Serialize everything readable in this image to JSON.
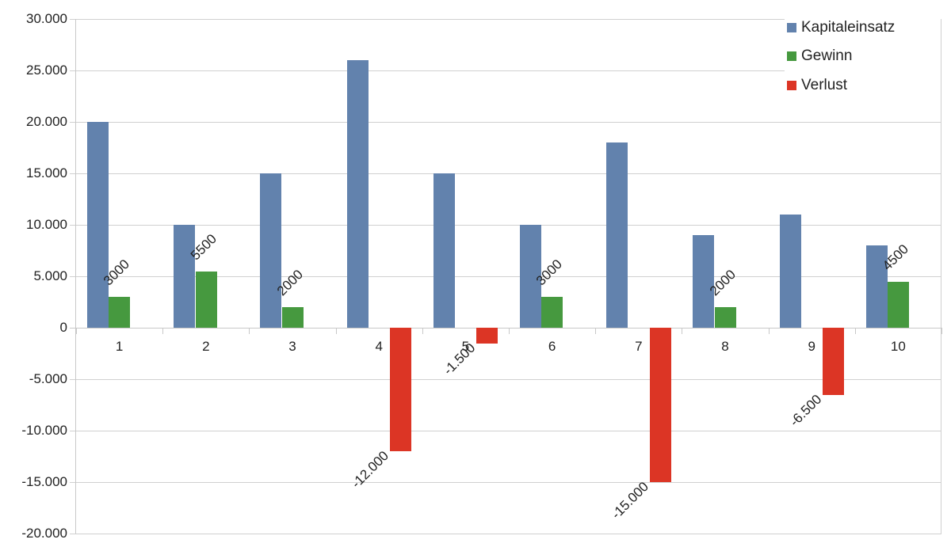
{
  "chart_data": {
    "type": "bar",
    "title": "",
    "xlabel": "",
    "ylabel": "",
    "categories": [
      "1",
      "2",
      "3",
      "4",
      "5",
      "6",
      "7",
      "8",
      "9",
      "10"
    ],
    "series": [
      {
        "name": "Kapitaleinsatz",
        "color": "#6282ad",
        "values": [
          20000,
          10000,
          15000,
          26000,
          15000,
          10000,
          18000,
          9000,
          11000,
          8000
        ],
        "labels": [
          null,
          null,
          null,
          null,
          null,
          null,
          null,
          null,
          null,
          null
        ]
      },
      {
        "name": "Gewinn",
        "color": "#46993f",
        "values": [
          3000,
          5500,
          2000,
          null,
          null,
          3000,
          null,
          2000,
          null,
          4500
        ],
        "labels": [
          "3000",
          "5500",
          "2000",
          null,
          null,
          "3000",
          null,
          "2000",
          null,
          "4500"
        ]
      },
      {
        "name": "Verlust",
        "color": "#dc3525",
        "values": [
          null,
          null,
          null,
          -12000,
          -1500,
          null,
          -15000,
          null,
          -6500,
          null
        ],
        "labels": [
          null,
          null,
          null,
          "-12.000",
          "-1.500",
          null,
          "-15.000",
          null,
          "-6.500",
          null
        ]
      }
    ],
    "ylim": [
      -20000,
      30000
    ],
    "yticks": [
      30000,
      25000,
      20000,
      15000,
      10000,
      5000,
      0,
      -5000,
      -10000,
      -15000,
      -20000
    ],
    "ytick_labels": [
      "30.000",
      "25.000",
      "20.000",
      "15.000",
      "10.000",
      "5.000",
      "0",
      "-5.000",
      "-10.000",
      "-15.000",
      "-20.000"
    ],
    "grid": true,
    "legend_position": "top-right"
  }
}
